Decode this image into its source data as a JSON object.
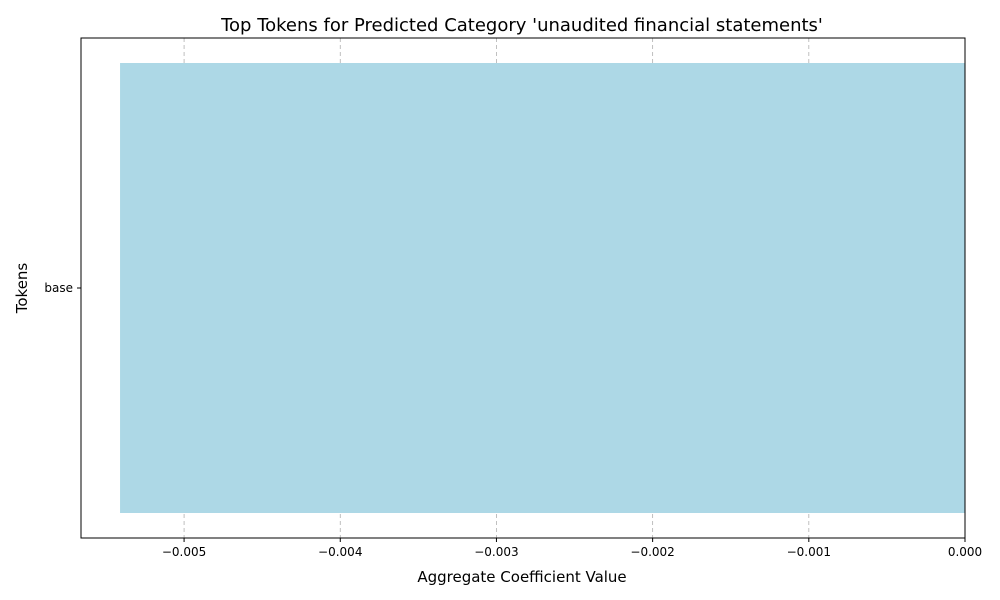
{
  "chart_data": {
    "type": "bar",
    "orientation": "horizontal",
    "title": "Top Tokens for Predicted Category 'unaudited financial statements'",
    "xlabel": "Aggregate Coefficient Value",
    "ylabel": "Tokens",
    "categories": [
      "base"
    ],
    "values": [
      -0.00541
    ],
    "xlim": [
      -0.00566,
      0.0
    ],
    "xticks": [
      -0.005,
      -0.004,
      -0.003,
      -0.002,
      -0.001,
      0.0
    ],
    "xtick_labels": [
      "−0.005",
      "−0.004",
      "−0.003",
      "−0.002",
      "−0.001",
      "0.000"
    ],
    "bar_color": "#add8e6",
    "grid": "x-dashed"
  }
}
